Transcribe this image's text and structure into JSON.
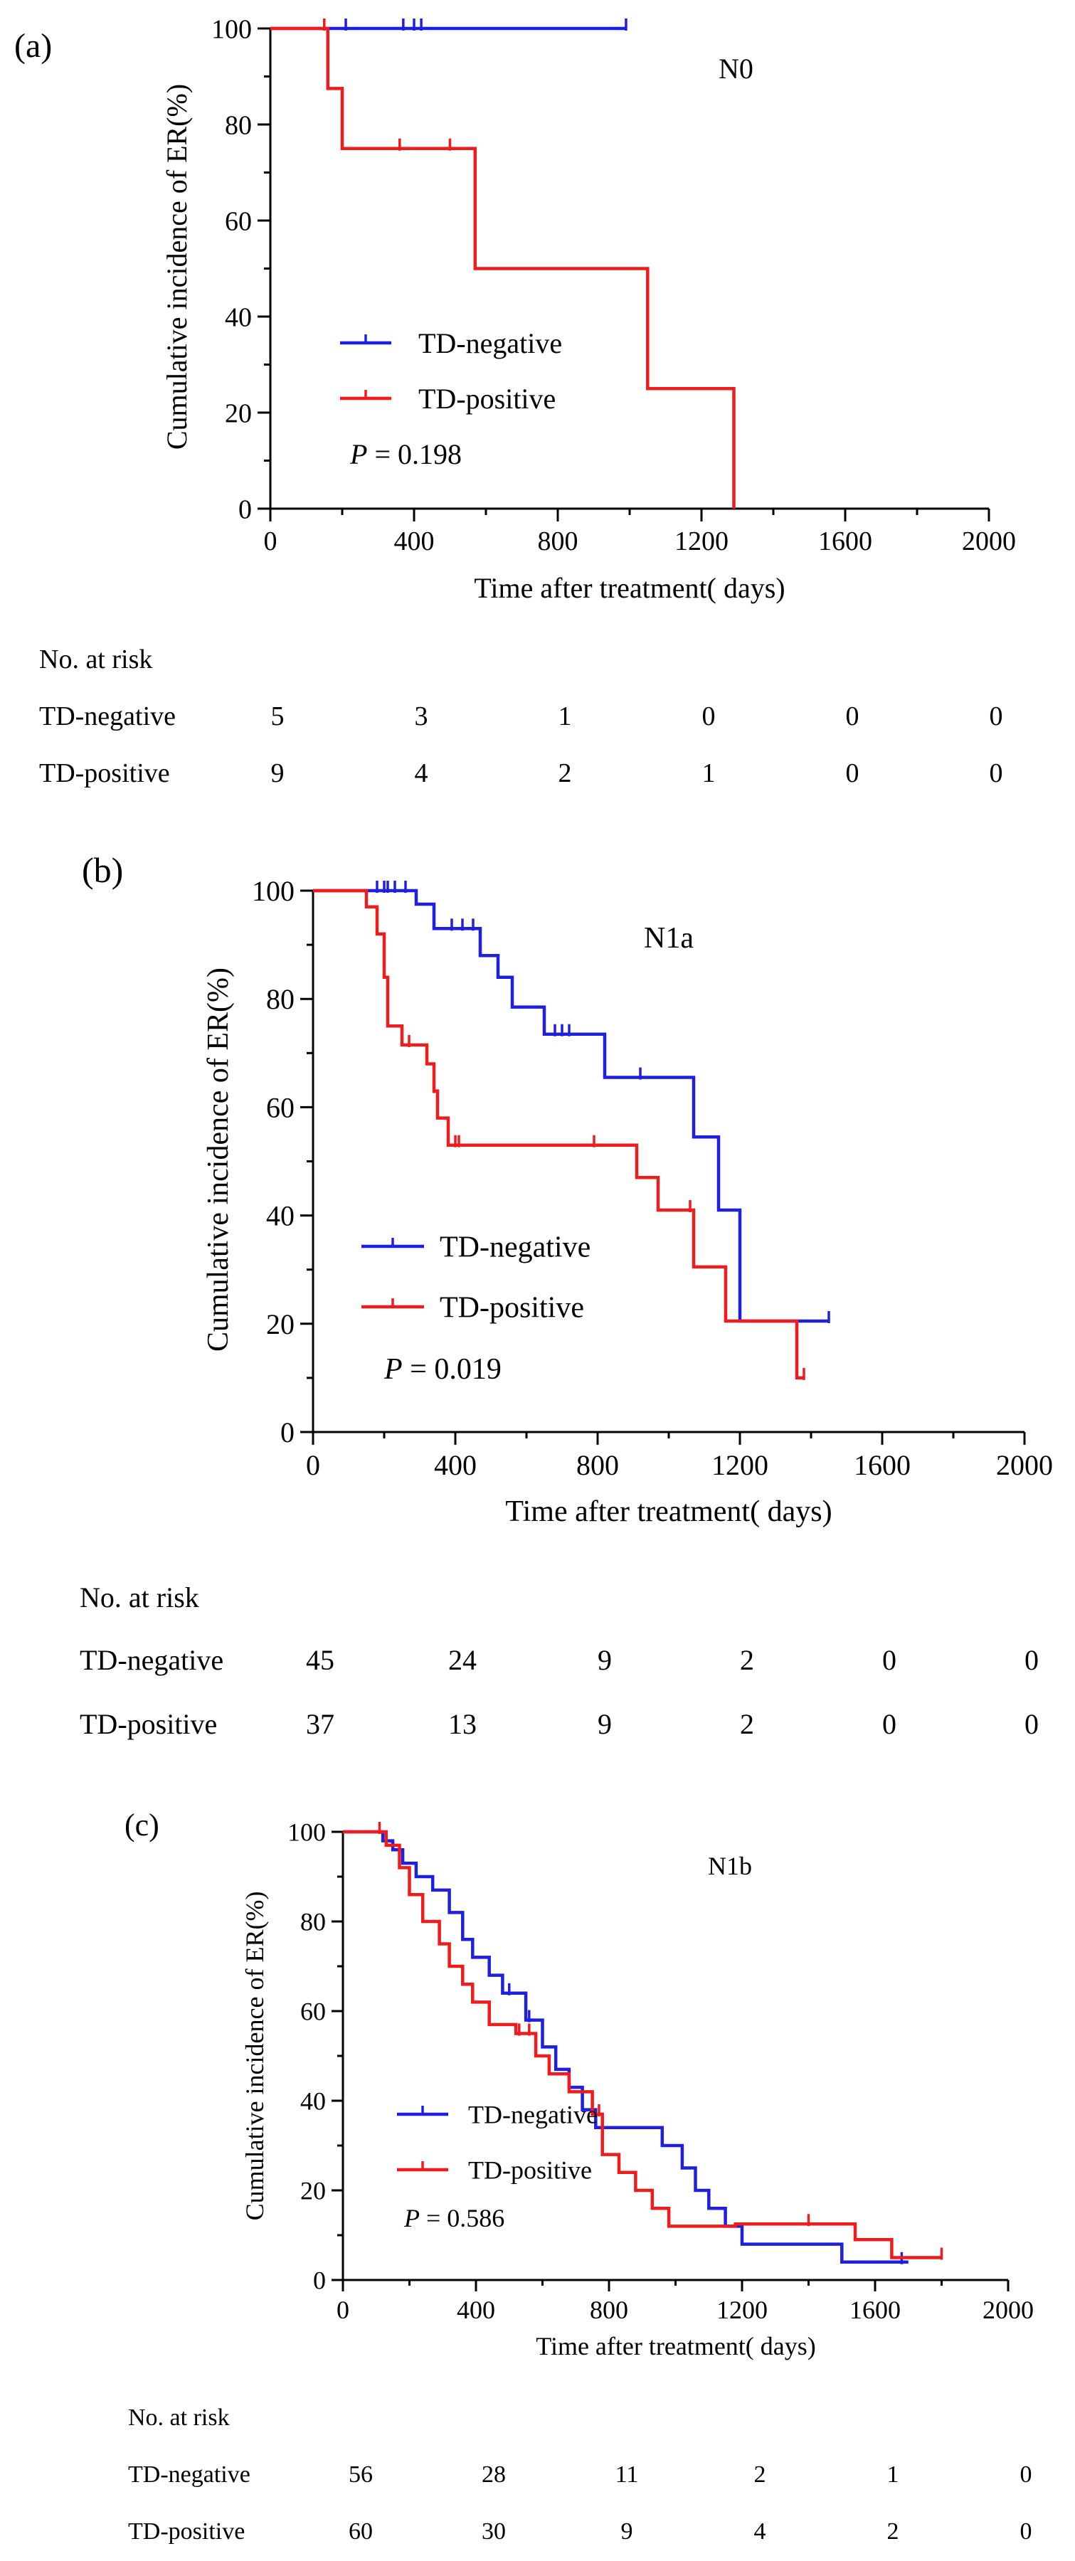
{
  "colors": {
    "negative": "#1f1fe0",
    "positive": "#ee1c1c",
    "axis": "#000000"
  },
  "chart_data": [
    {
      "id": "a",
      "type": "line",
      "panel_label": "(a)",
      "title": "N0",
      "xlabel": "Time after treatment(  days)",
      "ylabel": "Cumulative incidence of ER(%)",
      "xlim": [
        0,
        2000
      ],
      "ylim": [
        0,
        100
      ],
      "xticks": [
        0,
        400,
        800,
        1200,
        1600,
        2000
      ],
      "yticks": [
        0,
        20,
        40,
        60,
        80,
        100
      ],
      "p_label": "P",
      "p_value": " = 0.198",
      "series": [
        {
          "name": "TD-negative",
          "color_key": "negative",
          "steps": [
            [
              0,
              100
            ],
            [
              990,
              100
            ]
          ],
          "censor": [
            210,
            370,
            400,
            420,
            990
          ]
        },
        {
          "name": "TD-positive",
          "color_key": "positive",
          "steps": [
            [
              0,
              100
            ],
            [
              160,
              100
            ],
            [
              160,
              87.5
            ],
            [
              200,
              87.5
            ],
            [
              200,
              75
            ],
            [
              570,
              75
            ],
            [
              570,
              50
            ],
            [
              1050,
              50
            ],
            [
              1050,
              25
            ],
            [
              1290,
              25
            ],
            [
              1290,
              0
            ]
          ],
          "censor": [
            150,
            360,
            500
          ]
        }
      ],
      "risk_table": {
        "title": "No. at risk",
        "times": [
          0,
          400,
          800,
          1200,
          1600,
          2000
        ],
        "rows": [
          {
            "label": "TD-negative",
            "values": [
              "5",
              "3",
              "1",
              "0",
              "0",
              "0"
            ]
          },
          {
            "label": "TD-positive",
            "values": [
              "9",
              "4",
              "2",
              "1",
              "0",
              "0"
            ]
          }
        ]
      }
    },
    {
      "id": "b",
      "type": "line",
      "panel_label": "(b)",
      "title": "N1a",
      "xlabel": "Time after treatment(  days)",
      "ylabel": "Cumulative incidence of ER(%)",
      "xlim": [
        0,
        2000
      ],
      "ylim": [
        0,
        100
      ],
      "xticks": [
        0,
        400,
        800,
        1200,
        1600,
        2000
      ],
      "yticks": [
        0,
        20,
        40,
        60,
        80,
        100
      ],
      "p_label": "P",
      "p_value": " = 0.019",
      "series": [
        {
          "name": "TD-negative",
          "color_key": "negative",
          "steps": [
            [
              0,
              100
            ],
            [
              290,
              100
            ],
            [
              290,
              97.5
            ],
            [
              340,
              97.5
            ],
            [
              340,
              93
            ],
            [
              470,
              93
            ],
            [
              470,
              88
            ],
            [
              520,
              88
            ],
            [
              520,
              84
            ],
            [
              560,
              84
            ],
            [
              560,
              78.5
            ],
            [
              650,
              78.5
            ],
            [
              650,
              73.5
            ],
            [
              820,
              73.5
            ],
            [
              820,
              65.5
            ],
            [
              1070,
              65.5
            ],
            [
              1070,
              54.5
            ],
            [
              1140,
              54.5
            ],
            [
              1140,
              41
            ],
            [
              1200,
              41
            ],
            [
              1200,
              20.5
            ],
            [
              1450,
              20.5
            ]
          ],
          "censor": [
            180,
            200,
            210,
            230,
            260,
            390,
            420,
            450,
            680,
            700,
            720,
            920,
            1450
          ]
        },
        {
          "name": "TD-positive",
          "color_key": "positive",
          "steps": [
            [
              0,
              100
            ],
            [
              150,
              100
            ],
            [
              150,
              97
            ],
            [
              180,
              97
            ],
            [
              180,
              92
            ],
            [
              200,
              92
            ],
            [
              200,
              84
            ],
            [
              210,
              84
            ],
            [
              210,
              75
            ],
            [
              250,
              75
            ],
            [
              250,
              71.5
            ],
            [
              320,
              71.5
            ],
            [
              320,
              68
            ],
            [
              340,
              68
            ],
            [
              340,
              63
            ],
            [
              350,
              63
            ],
            [
              350,
              58
            ],
            [
              380,
              58
            ],
            [
              380,
              53
            ],
            [
              910,
              53
            ],
            [
              910,
              47
            ],
            [
              970,
              47
            ],
            [
              970,
              41
            ],
            [
              1070,
              41
            ],
            [
              1070,
              30.5
            ],
            [
              1160,
              30.5
            ],
            [
              1160,
              20.5
            ],
            [
              1360,
              20.5
            ],
            [
              1360,
              10
            ],
            [
              1380,
              10
            ]
          ],
          "censor": [
            270,
            340,
            400,
            410,
            790,
            1060,
            1380
          ]
        }
      ],
      "risk_table": {
        "title": "No. at risk",
        "times": [
          0,
          400,
          800,
          1200,
          1600,
          2000
        ],
        "rows": [
          {
            "label": "TD-negative",
            "values": [
              "45",
              "24",
              "9",
              "2",
              "0",
              "0"
            ]
          },
          {
            "label": "TD-positive",
            "values": [
              "37",
              "13",
              "9",
              "2",
              "0",
              "0"
            ]
          }
        ]
      }
    },
    {
      "id": "c",
      "type": "line",
      "panel_label": "(c)",
      "title": "N1b",
      "xlabel": "Time after treatment(  days)",
      "ylabel": "Cumulative incidence of ER(%)",
      "xlim": [
        0,
        2000
      ],
      "ylim": [
        0,
        100
      ],
      "xticks": [
        0,
        400,
        800,
        1200,
        1600,
        2000
      ],
      "yticks": [
        0,
        20,
        40,
        60,
        80,
        100
      ],
      "p_label": "P",
      "p_value": " = 0.586",
      "series": [
        {
          "name": "TD-negative",
          "color_key": "negative",
          "steps": [
            [
              0,
              100
            ],
            [
              120,
              100
            ],
            [
              120,
              98
            ],
            [
              150,
              98
            ],
            [
              150,
              96
            ],
            [
              180,
              96
            ],
            [
              180,
              93
            ],
            [
              220,
              93
            ],
            [
              220,
              90
            ],
            [
              270,
              90
            ],
            [
              270,
              87
            ],
            [
              320,
              87
            ],
            [
              320,
              82
            ],
            [
              360,
              82
            ],
            [
              360,
              76
            ],
            [
              390,
              76
            ],
            [
              390,
              72
            ],
            [
              440,
              72
            ],
            [
              440,
              68
            ],
            [
              480,
              68
            ],
            [
              480,
              64
            ],
            [
              550,
              64
            ],
            [
              550,
              58
            ],
            [
              600,
              58
            ],
            [
              600,
              52
            ],
            [
              640,
              52
            ],
            [
              640,
              47
            ],
            [
              680,
              47
            ],
            [
              680,
              43
            ],
            [
              720,
              43
            ],
            [
              720,
              38
            ],
            [
              760,
              38
            ],
            [
              760,
              34
            ],
            [
              960,
              34
            ],
            [
              960,
              30
            ],
            [
              1020,
              30
            ],
            [
              1020,
              25
            ],
            [
              1060,
              25
            ],
            [
              1060,
              20
            ],
            [
              1100,
              20
            ],
            [
              1100,
              16
            ],
            [
              1150,
              16
            ],
            [
              1150,
              12
            ],
            [
              1200,
              12
            ],
            [
              1200,
              8
            ],
            [
              1500,
              8
            ],
            [
              1500,
              4
            ],
            [
              1700,
              4
            ]
          ],
          "censor": [
            500,
            560,
            1680
          ]
        },
        {
          "name": "TD-positive",
          "color_key": "positive",
          "steps": [
            [
              0,
              100
            ],
            [
              130,
              100
            ],
            [
              130,
              97
            ],
            [
              170,
              97
            ],
            [
              170,
              92
            ],
            [
              200,
              92
            ],
            [
              200,
              86
            ],
            [
              240,
              86
            ],
            [
              240,
              80
            ],
            [
              290,
              80
            ],
            [
              290,
              75
            ],
            [
              320,
              75
            ],
            [
              320,
              70
            ],
            [
              360,
              70
            ],
            [
              360,
              66
            ],
            [
              390,
              66
            ],
            [
              390,
              62
            ],
            [
              440,
              62
            ],
            [
              440,
              57
            ],
            [
              520,
              57
            ],
            [
              520,
              55
            ],
            [
              580,
              55
            ],
            [
              580,
              50
            ],
            [
              620,
              50
            ],
            [
              620,
              46
            ],
            [
              680,
              46
            ],
            [
              680,
              42
            ],
            [
              750,
              42
            ],
            [
              750,
              37
            ],
            [
              780,
              37
            ],
            [
              780,
              28
            ],
            [
              830,
              28
            ],
            [
              830,
              24
            ],
            [
              880,
              24
            ],
            [
              880,
              20
            ],
            [
              930,
              20
            ],
            [
              930,
              16
            ],
            [
              980,
              16
            ],
            [
              980,
              12
            ],
            [
              1180,
              12
            ],
            [
              1180,
              12.5
            ],
            [
              1540,
              12.5
            ],
            [
              1540,
              9
            ],
            [
              1650,
              9
            ],
            [
              1650,
              5
            ],
            [
              1800,
              5
            ]
          ],
          "censor": [
            110,
            530,
            560,
            770,
            1400,
            1800
          ]
        }
      ],
      "risk_table": {
        "title": "No. at risk",
        "times": [
          0,
          400,
          800,
          1200,
          1600,
          2000
        ],
        "rows": [
          {
            "label": "TD-negative",
            "values": [
              "56",
              "28",
              "11",
              "2",
              "1",
              "0"
            ]
          },
          {
            "label": "TD-positive",
            "values": [
              "60",
              "30",
              "9",
              "4",
              "2",
              "0"
            ]
          }
        ]
      }
    }
  ]
}
